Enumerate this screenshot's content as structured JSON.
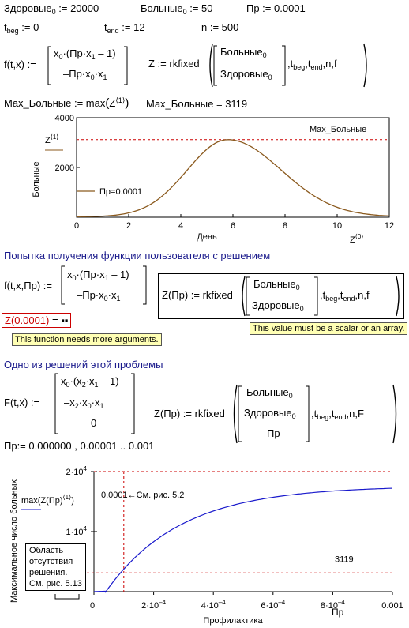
{
  "defs": {
    "healthy0": "Здоровые",
    "healthy0_sub": "0",
    "healthy0_val": ":= 20000",
    "sick0": "Больные",
    "sick0_sub": "0",
    "sick0_val": ":= 50",
    "pr": "Пр := 0.0001",
    "tbeg": "t",
    "tbeg_sub": "beg",
    "tbeg_val": ":= 0",
    "tend": "t",
    "tend_sub": "end",
    "tend_val": ":= 12",
    "n": "n := 500"
  },
  "f1": {
    "lhs": "f(t,x) :=",
    "row1": "x",
    "row1_sub": "0",
    "row1_rest": "·(Пр·x",
    "row1_sub2": "1",
    "row1_end": "– 1)",
    "row2": "–Пр·x",
    "row2_sub": "0",
    "row2_mid": "·x",
    "row2_sub2": "1"
  },
  "z1": {
    "lhs": "Z := rkfixed",
    "v1": "Больные",
    "v1_sub": "0",
    "v2": "Здоровые",
    "v2_sub": "0",
    "args": ",t",
    "args_sub1": "beg",
    "args2": ",t",
    "args_sub2": "end",
    "args3": ",n,f"
  },
  "max1": {
    "def": "Max_Больные := max",
    "def_z": "Z",
    "def_sup": "⟨1⟩",
    "result": "Max_Больные = 3119"
  },
  "chart1": {
    "ytick_4000": "4000",
    "ytick_2000": "2000",
    "ylabel": "Больные",
    "y_series": "Z",
    "y_series_sup": "⟨1⟩",
    "xticks": [
      "0",
      "2",
      "4",
      "6",
      "8",
      "10",
      "12"
    ],
    "xlabel": "День",
    "x_series": "Z",
    "x_series_sup": "⟨0⟩",
    "hline_label": "Max_Больные",
    "legend": "Пр=0.0001",
    "curve_color": "#8b5a1e",
    "hline_color": "#cc0000"
  },
  "section1": {
    "heading": "Попытка получения функции пользователя с решением"
  },
  "f2": {
    "lhs": "f(t,x,Пр) :="
  },
  "z2": {
    "lhs": "Z(Пр) := rkfixed",
    "args3": ",n,f"
  },
  "err": {
    "call": "Z(0.0001)",
    "eq": "= ▪▪",
    "tip1": "This function needs more arguments.",
    "tip2": "This value must be a scalar or an array."
  },
  "section2": {
    "heading": "Одно из решений этой проблемы"
  },
  "f3": {
    "lhs": "F(t,x) :=",
    "row1": "x",
    "row1_sub": "0",
    "row1_rest": "·(x",
    "row1_sub2": "2",
    "row1_mid": "·x",
    "row1_sub3": "1",
    "row1_end": "– 1)",
    "row2": "–x",
    "row2_sub": "2",
    "row2_mid": "·x",
    "row2_sub2": "0",
    "row2_mid2": "·x",
    "row2_sub3": "1",
    "row3": "0"
  },
  "z3": {
    "lhs": "Z(Пр) := rkfixed",
    "v3": "Пр",
    "args3": ",n,F"
  },
  "range": {
    "def": "Пр:= 0.000000 , 0.00001 .. 0.001"
  },
  "chart2": {
    "ylabel": "Максимальное число больных",
    "ytick_top": "2·10",
    "ytick_top_sup": "4",
    "ytick_mid": "1·10",
    "ytick_mid_sup": "4",
    "y_series": "max(Z(Пр)",
    "y_series_sup": "⟨1⟩",
    "y_series_end": ")",
    "xticks": [
      {
        "base": "0",
        "sup": ""
      },
      {
        "base": "2·10",
        "sup": "–4"
      },
      {
        "base": "4·10",
        "sup": "–4"
      },
      {
        "base": "6·10",
        "sup": "–4"
      },
      {
        "base": "8·10",
        "sup": "–4"
      },
      {
        "base": "0.001",
        "sup": ""
      }
    ],
    "x_series": "Пр",
    "xlabel": "Профилактика",
    "annot_ref": "0.0001←См. рис. 5.2",
    "annot_val": "3119",
    "box_lines": [
      "Область",
      "отсутствия",
      "решения.",
      "См. рис. 5.13"
    ],
    "curve_color": "#1a1acc",
    "hline_color": "#cc0000"
  },
  "chart_data": [
    {
      "type": "line",
      "x": [
        0,
        2,
        4,
        5,
        5.8,
        7,
        8,
        10,
        12
      ],
      "series": [
        {
          "name": "Пр=0.0001",
          "values": [
            50,
            300,
            1400,
            2600,
            3119,
            2650,
            1900,
            800,
            200
          ]
        }
      ],
      "xlabel": "День",
      "ylabel": "Больные",
      "xlim": [
        0,
        12
      ],
      "ylim": [
        0,
        4000
      ],
      "hline": 3119
    },
    {
      "type": "line",
      "x": [
        0,
        1e-05,
        5e-05,
        0.0001,
        0.0002,
        0.0004,
        0.0006,
        0.0008,
        0.001
      ],
      "series": [
        {
          "name": "",
          "values": [
            0,
            0,
            500,
            3119,
            8800,
            13000,
            15000,
            16000,
            16500
          ]
        }
      ],
      "xlabel": "Профилактика",
      "ylabel": "Максимальное число больных",
      "xlim": [
        0,
        0.001
      ],
      "ylim": [
        0,
        20000
      ],
      "hline": 3119,
      "vline": 0.0001
    }
  ]
}
